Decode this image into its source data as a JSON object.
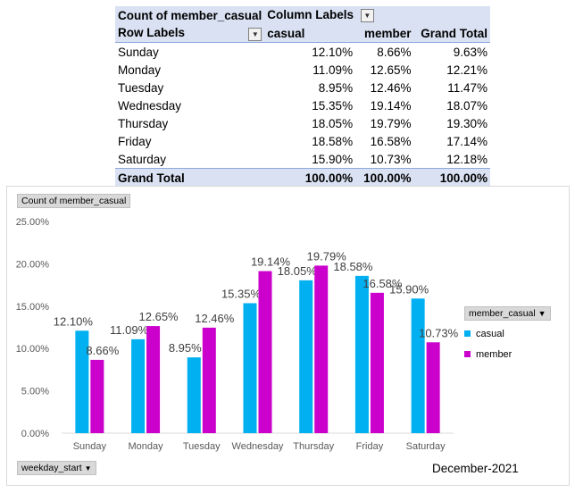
{
  "pivot": {
    "value_field": "Count of member_casual",
    "column_labels": "Column Labels",
    "row_labels": "Row Labels",
    "col_headers": [
      "casual",
      "member",
      "Grand Total"
    ],
    "rows": [
      {
        "label": "Sunday",
        "casual": "12.10%",
        "member": "8.66%",
        "total": "9.63%"
      },
      {
        "label": "Monday",
        "casual": "11.09%",
        "member": "12.65%",
        "total": "12.21%"
      },
      {
        "label": "Tuesday",
        "casual": "8.95%",
        "member": "12.46%",
        "total": "11.47%"
      },
      {
        "label": "Wednesday",
        "casual": "15.35%",
        "member": "19.14%",
        "total": "18.07%"
      },
      {
        "label": "Thursday",
        "casual": "18.05%",
        "member": "19.79%",
        "total": "19.30%"
      },
      {
        "label": "Friday",
        "casual": "18.58%",
        "member": "16.58%",
        "total": "17.14%"
      },
      {
        "label": "Saturday",
        "casual": "15.90%",
        "member": "10.73%",
        "total": "12.18%"
      }
    ],
    "grand_total": {
      "label": "Grand Total",
      "casual": "100.00%",
      "member": "100.00%",
      "total": "100.00%"
    }
  },
  "chart_data": {
    "type": "bar",
    "title": "",
    "value_field_button": "Count of member_casual",
    "axis_field_button": "weekday_start",
    "legend_field_button": "member_casual",
    "categories": [
      "Sunday",
      "Monday",
      "Tuesday",
      "Wednesday",
      "Thursday",
      "Friday",
      "Saturday"
    ],
    "series": [
      {
        "name": "casual",
        "color": "#00b0f0",
        "values": [
          12.1,
          11.09,
          8.95,
          15.35,
          18.05,
          18.58,
          15.9
        ],
        "labels": [
          "12.10%",
          "11.09%",
          "8.95%",
          "15.35%",
          "18.05%",
          "18.58%",
          "15.90%"
        ]
      },
      {
        "name": "member",
        "color": "#cc00cc",
        "values": [
          8.66,
          12.65,
          12.46,
          19.14,
          19.79,
          16.58,
          10.73
        ],
        "labels": [
          "8.66%",
          "12.65%",
          "12.46%",
          "19.14%",
          "19.79%",
          "16.58%",
          "10.73%"
        ]
      }
    ],
    "ylim": [
      0,
      25
    ],
    "yticks": [
      0,
      5,
      10,
      15,
      20,
      25
    ],
    "ytick_labels": [
      "0.00%",
      "5.00%",
      "10.00%",
      "15.00%",
      "20.00%",
      "25.00%"
    ],
    "grid": false,
    "legend_position": "right",
    "period_label": "December-2021"
  }
}
